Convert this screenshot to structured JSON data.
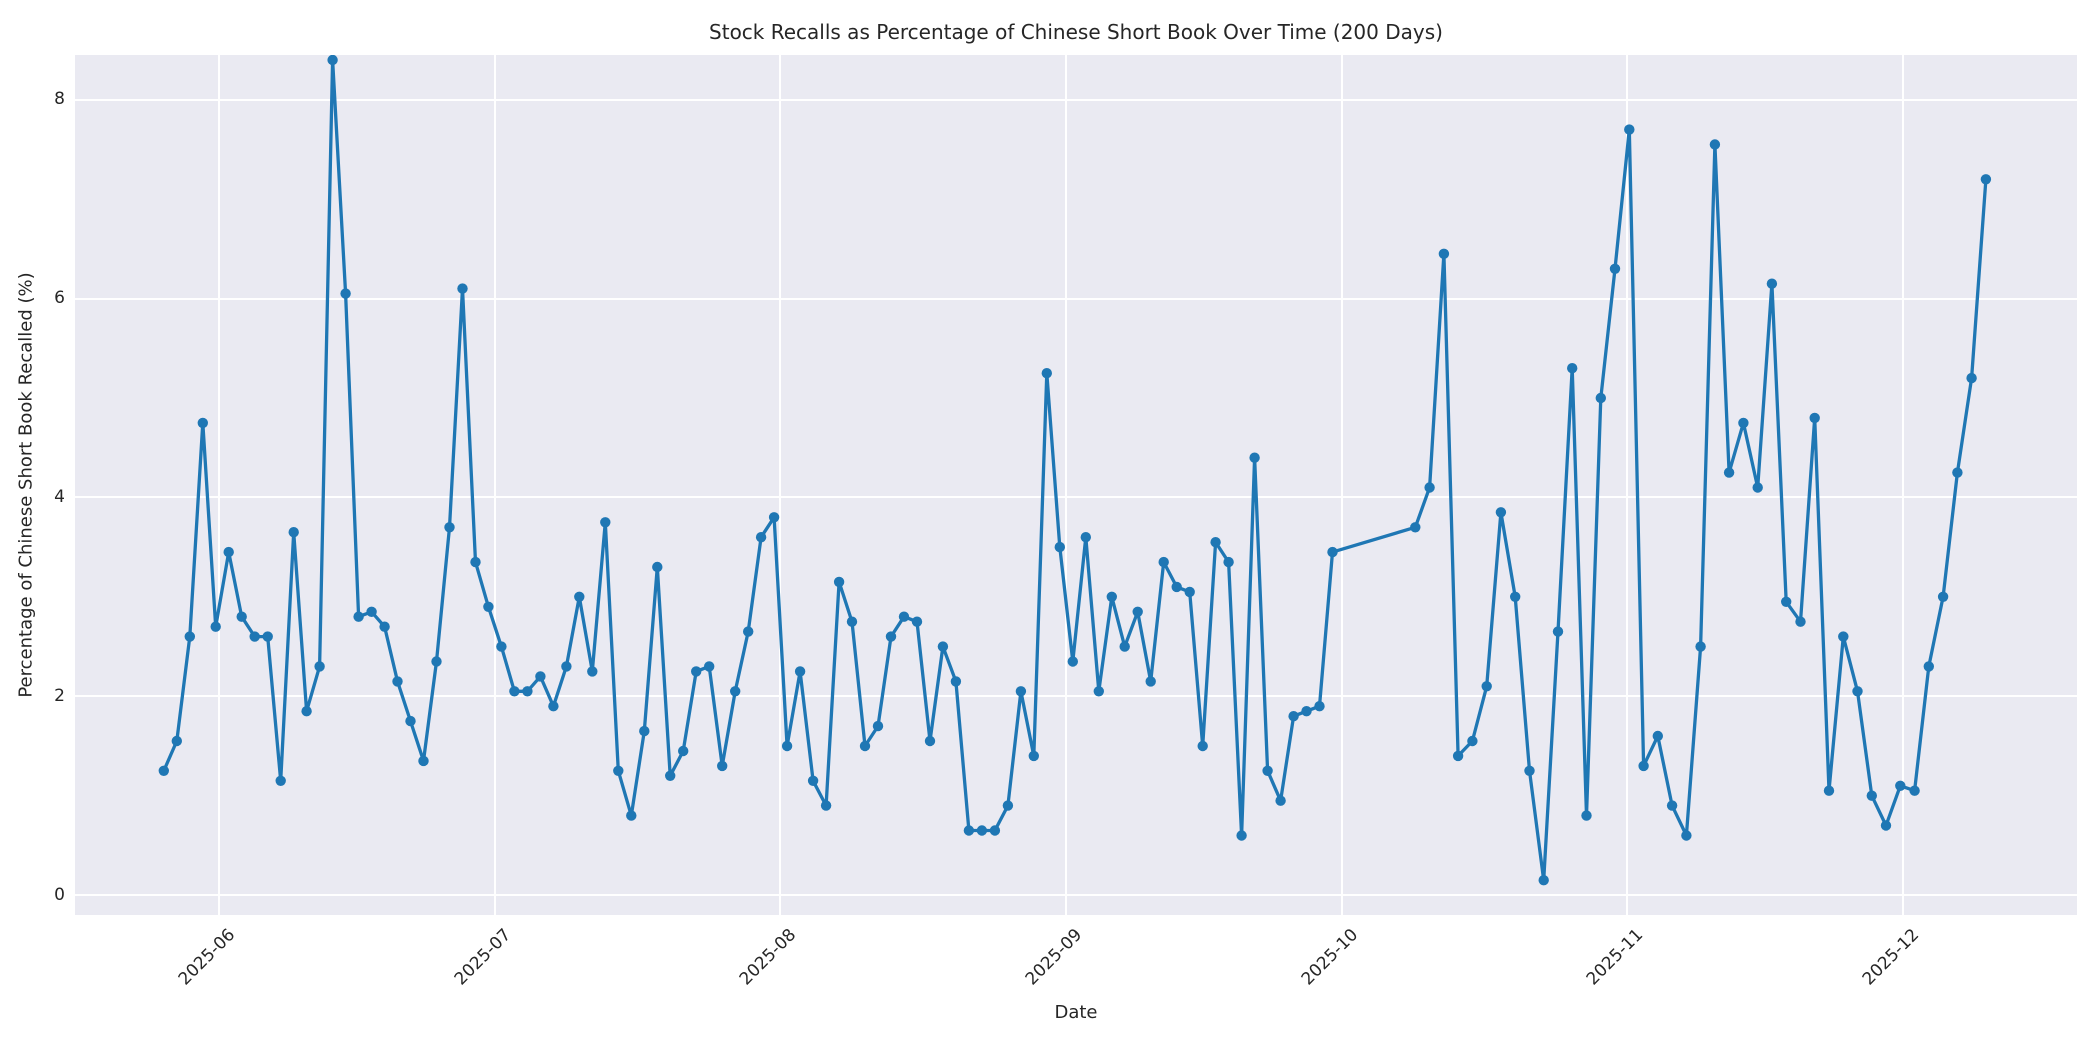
{
  "chart_data": {
    "type": "line",
    "title": "Stock Recalls as Percentage of Chinese Short Book Over Time (200 Days)",
    "xlabel": "Date",
    "ylabel": "Percentage of Chinese Short Book Recalled (%)",
    "legend": false,
    "grid": true,
    "style": {
      "line_color": "#1f77b4",
      "marker": "circle",
      "marker_radius": 5.2,
      "line_width": 3.3,
      "plot_background": "#eaeaf2",
      "grid_color": "#ffffff",
      "text_color": "#262626",
      "figure_background": "#ffffff"
    },
    "x_axis": {
      "start_date": "2025-05-26",
      "end_date": "2025-12-10",
      "xlim_days": [
        -9.65,
        207.9
      ],
      "ticks": [
        {
          "label": "2025-06",
          "day": 6
        },
        {
          "label": "2025-07",
          "day": 36
        },
        {
          "label": "2025-08",
          "day": 67
        },
        {
          "label": "2025-09",
          "day": 98
        },
        {
          "label": "2025-10",
          "day": 128
        },
        {
          "label": "2025-11",
          "day": 159
        },
        {
          "label": "2025-12",
          "day": 189
        }
      ]
    },
    "y_axis": {
      "ylim": [
        -0.2,
        8.45
      ],
      "ticks": [
        0,
        2,
        4,
        6,
        8
      ]
    },
    "segments": [
      {
        "label": "2025-05-26 to 2025-09-30",
        "start_day": 0,
        "end_day": 127,
        "values": [
          1.25,
          1.55,
          2.6,
          4.75,
          2.7,
          3.45,
          2.8,
          2.6,
          2.6,
          1.15,
          3.65,
          1.85,
          2.3,
          8.4,
          6.05,
          2.8,
          2.85,
          2.7,
          2.15,
          1.75,
          1.35,
          2.35,
          3.7,
          6.1,
          3.35,
          2.9,
          2.5,
          2.05,
          2.05,
          2.2,
          1.9,
          2.3,
          3.0,
          2.25,
          3.75,
          1.25,
          0.8,
          1.65,
          3.3,
          1.2,
          1.45,
          2.25,
          2.3,
          1.3,
          2.05,
          2.65,
          3.6,
          3.8,
          1.5,
          2.25,
          1.15,
          0.9,
          3.15,
          2.75,
          1.5,
          1.7,
          2.6,
          2.8,
          2.75,
          1.55,
          2.5,
          2.15,
          0.65,
          0.65,
          0.65,
          0.9,
          2.05,
          1.4,
          5.25,
          3.5,
          2.35,
          3.6,
          2.05,
          3.0,
          2.5,
          2.85,
          2.15,
          3.35,
          3.1,
          3.05,
          1.5,
          3.55,
          3.35,
          0.6,
          4.4,
          1.25,
          0.95,
          1.8,
          1.85,
          1.9,
          3.45
        ]
      },
      {
        "label": "2025-10-09 to 2025-12-10 (after early-October gap)",
        "start_day": 136,
        "end_day": 198,
        "values": [
          3.7,
          4.1,
          6.45,
          1.4,
          1.55,
          2.1,
          3.85,
          3.0,
          1.25,
          0.15,
          2.65,
          5.3,
          0.8,
          5.0,
          6.3,
          7.7,
          1.3,
          1.6,
          0.9,
          0.6,
          2.5,
          7.55,
          4.25,
          4.75,
          4.1,
          6.15,
          2.95,
          2.75,
          4.8,
          1.05,
          2.6,
          2.05,
          1.0,
          0.7,
          1.1,
          1.05,
          2.3,
          3.0,
          4.25,
          5.2,
          7.2
        ]
      }
    ]
  }
}
